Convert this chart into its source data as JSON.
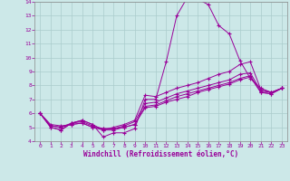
{
  "background_color": "#cce8e8",
  "grid_color": "#aacccc",
  "line_color": "#990099",
  "marker": "+",
  "xlim": [
    -0.5,
    23.5
  ],
  "ylim": [
    4,
    14
  ],
  "yticks": [
    4,
    5,
    6,
    7,
    8,
    9,
    10,
    11,
    12,
    13,
    14
  ],
  "xticks": [
    0,
    1,
    2,
    3,
    4,
    5,
    6,
    7,
    8,
    9,
    10,
    11,
    12,
    13,
    14,
    15,
    16,
    17,
    18,
    19,
    20,
    21,
    22,
    23
  ],
  "xlabel": "Windchill (Refroidissement éolien,°C)",
  "series": [
    [
      0,
      1,
      2,
      3,
      4,
      5,
      6,
      7,
      8,
      9,
      10,
      11,
      12,
      13,
      14,
      15,
      16,
      17,
      18,
      19,
      20,
      21,
      22,
      23
    ],
    [
      6.0,
      5.0,
      4.8,
      5.3,
      5.5,
      5.2,
      4.3,
      4.6,
      4.6,
      4.9,
      7.0,
      7.0,
      9.7,
      13.0,
      14.3,
      14.2,
      13.8,
      12.3,
      11.7,
      9.8,
      8.5,
      7.8,
      7.5,
      7.8
    ],
    [
      6.0,
      5.0,
      4.8,
      5.3,
      5.5,
      5.2,
      4.8,
      5.0,
      5.2,
      5.5,
      7.3,
      7.2,
      7.5,
      7.8,
      8.0,
      8.2,
      8.5,
      8.8,
      9.0,
      9.5,
      9.7,
      7.7,
      7.5,
      7.8
    ],
    [
      6.0,
      5.1,
      5.0,
      5.3,
      5.4,
      5.1,
      4.9,
      4.9,
      5.1,
      5.4,
      6.7,
      6.8,
      7.1,
      7.4,
      7.6,
      7.8,
      8.0,
      8.2,
      8.4,
      8.8,
      8.9,
      7.6,
      7.5,
      7.8
    ],
    [
      6.0,
      5.1,
      5.0,
      5.2,
      5.3,
      5.0,
      4.8,
      4.8,
      5.0,
      5.2,
      6.5,
      6.6,
      6.9,
      7.2,
      7.4,
      7.6,
      7.8,
      8.0,
      8.2,
      8.5,
      8.7,
      7.5,
      7.4,
      7.8
    ],
    [
      6.0,
      5.2,
      5.1,
      5.2,
      5.3,
      5.0,
      4.9,
      4.9,
      5.0,
      5.2,
      6.4,
      6.5,
      6.8,
      7.0,
      7.2,
      7.5,
      7.7,
      7.9,
      8.1,
      8.4,
      8.6,
      7.5,
      7.4,
      7.8
    ]
  ]
}
